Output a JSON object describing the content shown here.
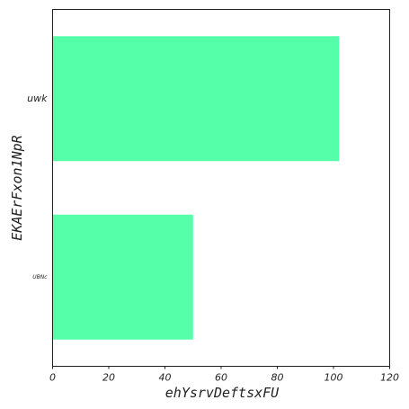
{
  "chart_data": {
    "type": "bar",
    "orientation": "horizontal",
    "categories": [
      "uwk",
      "UBNc"
    ],
    "values": [
      102,
      50
    ],
    "xlabel": "ehYsrvDeftsxFU",
    "ylabel": "EKAErFxon1NpR",
    "xlim": [
      0,
      120
    ],
    "xticks": [
      0,
      20,
      40,
      60,
      80,
      100,
      120
    ],
    "bar_color": "#55ffaa",
    "grid": false,
    "legend": "none"
  }
}
